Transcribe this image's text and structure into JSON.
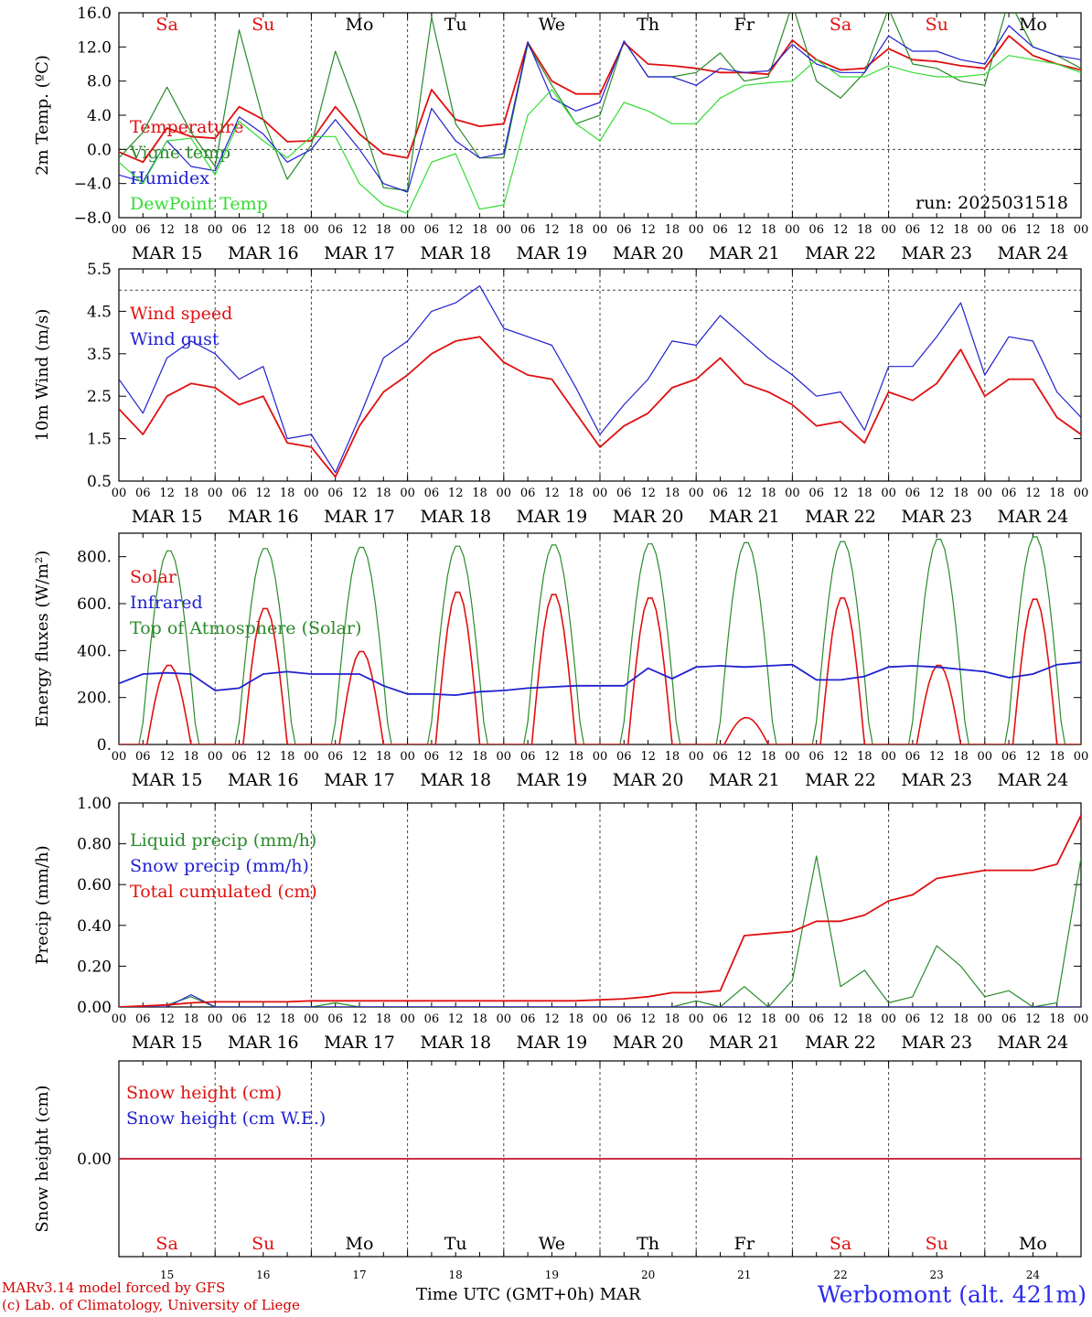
{
  "days": [
    "MAR 15",
    "MAR 16",
    "MAR 17",
    "MAR 18",
    "MAR 19",
    "MAR 20",
    "MAR 21",
    "MAR 22",
    "MAR 23",
    "MAR 24"
  ],
  "hour_ticks": [
    "00",
    "06",
    "12",
    "18"
  ],
  "hour_end_tick": "00",
  "weekdays": [
    {
      "label": "Sa",
      "color": "#e01010"
    },
    {
      "label": "Su",
      "color": "#e01010"
    },
    {
      "label": "Mo",
      "color": "#000000"
    },
    {
      "label": "Tu",
      "color": "#000000"
    },
    {
      "label": "We",
      "color": "#000000"
    },
    {
      "label": "Th",
      "color": "#000000"
    },
    {
      "label": "Fr",
      "color": "#000000"
    },
    {
      "label": "Sa",
      "color": "#e01010"
    },
    {
      "label": "Su",
      "color": "#e01010"
    },
    {
      "label": "Mo",
      "color": "#000000"
    }
  ],
  "day_numbers": [
    "15",
    "16",
    "17",
    "18",
    "19",
    "20",
    "21",
    "22",
    "23",
    "24"
  ],
  "run_label": "run: 2025031518",
  "footer": {
    "credit_line1": "MARv3.14 model forced by GFS",
    "credit_line2": "(c) Lab. of Climatology, University of Liege",
    "xlabel": "Time UTC (GMT+0h)",
    "month": "MAR",
    "station": "Werbomont (alt. 421m)"
  },
  "chart_data": [
    {
      "type": "line",
      "ylabel": "2m Temp. (ºC)",
      "ylim": [
        -8,
        16
      ],
      "ticks": [
        16,
        12,
        8,
        4,
        0,
        -4,
        -8
      ],
      "tick_labels": [
        "16.0",
        "12.0",
        "8.0",
        "4.0",
        "0.0",
        "−4.0",
        "−8.0"
      ],
      "ref_line": 0,
      "x": [
        0,
        6,
        12,
        18,
        24,
        30,
        36,
        42,
        48,
        54,
        60,
        66,
        72,
        78,
        84,
        90,
        96,
        102,
        108,
        114,
        120,
        126,
        132,
        138,
        144,
        150,
        156,
        162,
        168,
        174,
        180,
        186,
        192,
        198,
        204,
        210,
        216,
        222,
        228,
        234,
        240
      ],
      "series": [
        {
          "name": "Temperature",
          "color": "#e01010",
          "values": [
            -0.3,
            -1.5,
            2.5,
            1.5,
            1.3,
            5.0,
            3.5,
            0.9,
            1.0,
            5.0,
            1.8,
            -0.5,
            -1.0,
            7.0,
            3.5,
            2.7,
            3.0,
            12.5,
            8.0,
            6.5,
            6.5,
            12.5,
            10.0,
            9.8,
            9.5,
            9.0,
            9.0,
            8.8,
            12.8,
            10.5,
            9.3,
            9.5,
            11.8,
            10.5,
            10.3,
            9.8,
            9.5,
            13.3,
            11.0,
            10.0,
            9.3
          ]
        },
        {
          "name": "Vigne temp",
          "color": "#2a8a2a",
          "values": [
            -1.0,
            2.0,
            7.3,
            2.0,
            -2.0,
            14.0,
            3.5,
            -3.5,
            0.5,
            11.5,
            4.0,
            -4.5,
            -4.8,
            15.5,
            3.0,
            -1.0,
            -1.0,
            12.3,
            7.5,
            3.0,
            4.0,
            12.7,
            8.5,
            8.5,
            9.0,
            11.3,
            8.0,
            8.5,
            17.0,
            8.0,
            6.0,
            9.0,
            16.5,
            10.0,
            9.5,
            8.0,
            7.5,
            17.5,
            12.0,
            11.0,
            9.5
          ]
        },
        {
          "name": "Humidex",
          "color": "#2020d0",
          "values": [
            -3.0,
            -3.8,
            1.0,
            -2.0,
            -2.5,
            3.8,
            1.8,
            -1.5,
            0.0,
            3.5,
            0.0,
            -4.0,
            -5.0,
            4.8,
            1.0,
            -1.0,
            -0.5,
            12.6,
            6.0,
            4.5,
            5.5,
            12.7,
            8.5,
            8.5,
            7.5,
            9.5,
            9.0,
            9.2,
            12.3,
            10.0,
            9.0,
            9.0,
            13.3,
            11.5,
            11.5,
            10.5,
            10.0,
            14.5,
            12.0,
            11.0,
            10.5
          ]
        },
        {
          "name": "DewPoint Temp",
          "color": "#33dd33",
          "values": [
            -1.5,
            -4.0,
            1.0,
            1.3,
            -3.0,
            3.3,
            1.0,
            -1.0,
            1.5,
            1.5,
            -4.0,
            -6.5,
            -7.5,
            -1.5,
            -0.5,
            -7.0,
            -6.5,
            4.0,
            7.0,
            3.0,
            1.0,
            5.5,
            4.5,
            3.0,
            3.0,
            6.0,
            7.5,
            7.8,
            8.0,
            10.5,
            8.5,
            8.5,
            9.8,
            9.0,
            8.5,
            8.5,
            8.8,
            11.0,
            10.5,
            10.0,
            9.0
          ]
        }
      ]
    },
    {
      "type": "line",
      "ylabel": "10m Wind (m/s)",
      "ylim": [
        0.5,
        5.5
      ],
      "ticks": [
        5.5,
        4.5,
        3.5,
        2.5,
        1.5,
        0.5
      ],
      "tick_labels": [
        "5.5",
        "4.5",
        "3.5",
        "2.5",
        "1.5",
        "0.5"
      ],
      "ref_line": 5.0,
      "x": [
        0,
        6,
        12,
        18,
        24,
        30,
        36,
        42,
        48,
        54,
        60,
        66,
        72,
        78,
        84,
        90,
        96,
        102,
        108,
        114,
        120,
        126,
        132,
        138,
        144,
        150,
        156,
        162,
        168,
        174,
        180,
        186,
        192,
        198,
        204,
        210,
        216,
        222,
        228,
        234,
        240
      ],
      "series": [
        {
          "name": "Wind speed",
          "color": "#e01010",
          "values": [
            2.2,
            1.6,
            2.5,
            2.8,
            2.7,
            2.3,
            2.5,
            1.4,
            1.3,
            0.6,
            1.8,
            2.6,
            3.0,
            3.5,
            3.8,
            3.9,
            3.3,
            3.0,
            2.9,
            2.1,
            1.3,
            1.8,
            2.1,
            2.7,
            2.9,
            3.4,
            2.8,
            2.6,
            2.3,
            1.8,
            1.9,
            1.4,
            2.6,
            2.4,
            2.8,
            3.6,
            2.5,
            2.9,
            2.9,
            2.0,
            1.6
          ]
        },
        {
          "name": "Wind gust",
          "color": "#2020d0",
          "values": [
            2.9,
            2.1,
            3.4,
            3.8,
            3.5,
            2.9,
            3.2,
            1.5,
            1.6,
            0.7,
            2.0,
            3.4,
            3.8,
            4.5,
            4.7,
            5.1,
            4.1,
            3.9,
            3.7,
            2.7,
            1.6,
            2.3,
            2.9,
            3.8,
            3.7,
            4.4,
            3.9,
            3.4,
            3.0,
            2.5,
            2.6,
            1.7,
            3.2,
            3.2,
            3.9,
            4.7,
            3.0,
            3.9,
            3.8,
            2.6,
            2.0
          ]
        }
      ]
    },
    {
      "type": "line",
      "ylabel": "Energy fluxes (W/m²)",
      "ylim": [
        0,
        900
      ],
      "ticks": [
        800,
        600,
        400,
        200,
        0
      ],
      "tick_labels": [
        "800.",
        "600.",
        "400.",
        "200.",
        "0."
      ],
      "x": [
        0,
        6,
        12,
        18,
        24,
        30,
        36,
        42,
        48,
        54,
        60,
        66,
        72,
        78,
        84,
        90,
        96,
        102,
        108,
        114,
        120,
        126,
        132,
        138,
        144,
        150,
        156,
        162,
        168,
        174,
        180,
        186,
        192,
        198,
        204,
        210,
        216,
        222,
        228,
        234,
        240
      ],
      "series": [
        {
          "name": "Solar",
          "color": "#e01010",
          "peaks": [
            340,
            585,
            400,
            655,
            645,
            630,
            115,
            630,
            340,
            625
          ]
        },
        {
          "name": "Infrared",
          "color": "#2020d0",
          "values": [
            260,
            300,
            305,
            300,
            230,
            240,
            300,
            310,
            300,
            300,
            300,
            250,
            215,
            215,
            210,
            225,
            230,
            240,
            245,
            250,
            250,
            250,
            325,
            280,
            330,
            335,
            330,
            335,
            340,
            275,
            275,
            290,
            330,
            335,
            330,
            320,
            310,
            285,
            300,
            340,
            350
          ]
        },
        {
          "name": "Top of Atmosphere (Solar)",
          "color": "#2a8a2a",
          "peaks": [
            830,
            840,
            845,
            850,
            855,
            860,
            865,
            870,
            880,
            890
          ]
        }
      ]
    },
    {
      "type": "line",
      "ylabel": "Precip (mm/h)",
      "ylim": [
        0,
        1
      ],
      "ticks": [
        1.0,
        0.8,
        0.6,
        0.4,
        0.2,
        0.0
      ],
      "tick_labels": [
        "1.00",
        "0.80",
        "0.60",
        "0.40",
        "0.20",
        "0.00"
      ],
      "x": [
        0,
        6,
        12,
        18,
        24,
        30,
        36,
        42,
        48,
        54,
        60,
        66,
        72,
        78,
        84,
        90,
        96,
        102,
        108,
        114,
        120,
        126,
        132,
        138,
        144,
        150,
        156,
        162,
        168,
        174,
        180,
        186,
        192,
        198,
        204,
        210,
        216,
        222,
        228,
        234,
        240
      ],
      "series": [
        {
          "name": "Liquid precip (mm/h)",
          "color": "#2a8a2a",
          "values": [
            0,
            0,
            0.01,
            0.05,
            0,
            0,
            0,
            0,
            0,
            0.02,
            0,
            0,
            0,
            0,
            0,
            0,
            0,
            0,
            0,
            0,
            0,
            0,
            0,
            0,
            0.03,
            0,
            0.1,
            0,
            0.13,
            0.74,
            0.1,
            0.18,
            0.02,
            0.05,
            0.3,
            0.2,
            0.05,
            0.08,
            0,
            0.02,
            0.73
          ]
        },
        {
          "name": "Snow precip (mm/h)",
          "color": "#2020d0",
          "values": [
            0,
            0,
            0,
            0.06,
            0,
            0,
            0,
            0,
            0,
            0,
            0,
            0,
            0,
            0,
            0,
            0,
            0,
            0,
            0,
            0,
            0,
            0,
            0,
            0,
            0,
            0,
            0,
            0,
            0,
            0,
            0,
            0,
            0,
            0,
            0,
            0,
            0,
            0,
            0,
            0,
            0
          ]
        },
        {
          "name": "Total cumulated (cm)",
          "color": "#e01010",
          "values": [
            0,
            0.005,
            0.01,
            0.02,
            0.025,
            0.025,
            0.025,
            0.025,
            0.03,
            0.03,
            0.03,
            0.03,
            0.03,
            0.03,
            0.03,
            0.03,
            0.03,
            0.03,
            0.03,
            0.03,
            0.035,
            0.04,
            0.05,
            0.07,
            0.07,
            0.08,
            0.35,
            0.36,
            0.37,
            0.42,
            0.42,
            0.45,
            0.52,
            0.55,
            0.63,
            0.65,
            0.67,
            0.67,
            0.67,
            0.7,
            0.94
          ]
        }
      ]
    },
    {
      "type": "line",
      "ylabel": "Snow height (cm)",
      "ylim": [
        -1,
        1
      ],
      "ticks": [
        0
      ],
      "tick_labels": [
        "0.00"
      ],
      "series": [
        {
          "name": "Snow height (cm)",
          "color": "#e01010",
          "values": [
            0,
            0
          ]
        },
        {
          "name": "Snow height (cm W.E.)",
          "color": "#2020d0",
          "values": [
            0,
            0
          ]
        }
      ]
    }
  ]
}
